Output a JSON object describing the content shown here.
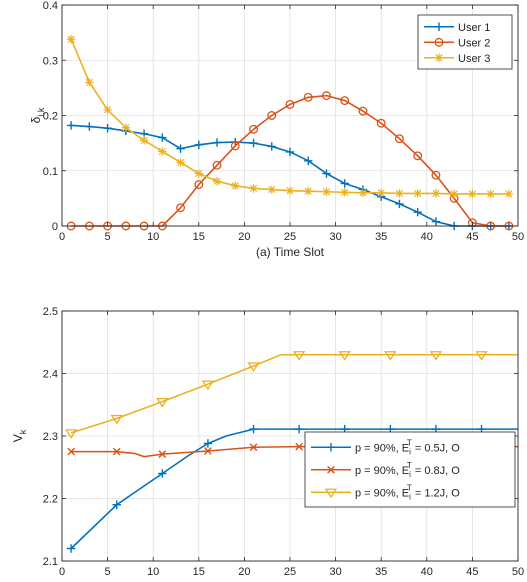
{
  "chart_data": [
    {
      "type": "line",
      "title": "",
      "xlabel": "(a) Time Slot",
      "ylabel_main": "δ",
      "ylabel_sub": "i,k",
      "xlim": [
        0,
        50
      ],
      "ylim": [
        0,
        0.4
      ],
      "xticks": [
        "0",
        "5",
        "10",
        "15",
        "20",
        "25",
        "30",
        "35",
        "40",
        "45",
        "50"
      ],
      "yticks": [
        "0",
        "0.1",
        "0.2",
        "0.3",
        "0.4"
      ],
      "grid": true,
      "legend_position": "top-right",
      "x": [
        1,
        3,
        5,
        7,
        9,
        11,
        13,
        15,
        17,
        19,
        21,
        23,
        25,
        27,
        29,
        31,
        33,
        35,
        37,
        39,
        41,
        43,
        45,
        47,
        49
      ],
      "series": [
        {
          "name": "User 1",
          "color": "#0072BD",
          "marker": "plus",
          "values": [
            0.182,
            0.18,
            0.177,
            0.172,
            0.167,
            0.16,
            0.14,
            0.147,
            0.151,
            0.152,
            0.15,
            0.144,
            0.134,
            0.118,
            0.095,
            0.077,
            0.066,
            0.053,
            0.04,
            0.025,
            0.008,
            0,
            0,
            0,
            0
          ]
        },
        {
          "name": "User 2",
          "color": "#D95319",
          "marker": "circle",
          "values": [
            0,
            0,
            0,
            0,
            0,
            0,
            0.033,
            0.075,
            0.11,
            0.145,
            0.175,
            0.2,
            0.22,
            0.233,
            0.236,
            0.227,
            0.208,
            0.186,
            0.158,
            0.127,
            0.092,
            0.05,
            0.006,
            0,
            0
          ]
        },
        {
          "name": "User 3",
          "color": "#EDB120",
          "marker": "star",
          "values": [
            0.338,
            0.26,
            0.21,
            0.178,
            0.155,
            0.135,
            0.115,
            0.095,
            0.081,
            0.073,
            0.068,
            0.066,
            0.064,
            0.063,
            0.062,
            0.061,
            0.06,
            0.06,
            0.059,
            0.059,
            0.059,
            0.058,
            0.058,
            0.058,
            0.058
          ]
        }
      ]
    },
    {
      "type": "line",
      "title": "",
      "xlabel": "(b) Time Slot",
      "ylabel_main": "V",
      "ylabel_sub": "k",
      "xlim": [
        0,
        50
      ],
      "ylim": [
        2.1,
        2.5
      ],
      "xticks": [
        "0",
        "5",
        "10",
        "15",
        "20",
        "25",
        "30",
        "35",
        "40",
        "45",
        "50"
      ],
      "yticks": [
        "2.1",
        "2.2",
        "2.3",
        "2.4",
        "2.5"
      ],
      "grid": true,
      "legend_position": "bottom-right",
      "series": [
        {
          "name": "p = 90%, E_i^T = 0.5J, O",
          "legend_parts": [
            "p = 90%, E",
            "i",
            "T",
            " = 0.5J, O"
          ],
          "color": "#0072BD",
          "marker": "plus",
          "x": [
            1,
            6,
            11,
            14,
            16,
            18,
            21,
            26,
            31,
            36,
            41,
            46,
            50
          ],
          "values": [
            2.12,
            2.19,
            2.24,
            2.27,
            2.288,
            2.3,
            2.311,
            2.311,
            2.311,
            2.311,
            2.311,
            2.311,
            2.311
          ],
          "marker_x": [
            1,
            6,
            11,
            16,
            21,
            26,
            31,
            36,
            41,
            46
          ]
        },
        {
          "name": "p = 90%, E_i^T = 0.8J, O",
          "legend_parts": [
            "p = 90%, E",
            "i",
            "T",
            " = 0.8J, O"
          ],
          "color": "#D95319",
          "marker": "cross",
          "x": [
            1,
            6,
            8,
            9,
            11,
            16,
            21,
            26,
            31,
            36,
            41,
            46,
            50
          ],
          "values": [
            2.275,
            2.275,
            2.272,
            2.267,
            2.271,
            2.276,
            2.282,
            2.283,
            2.283,
            2.283,
            2.283,
            2.283,
            2.283
          ],
          "marker_x": [
            1,
            6,
            11,
            16,
            21,
            26,
            31,
            36,
            41,
            46
          ]
        },
        {
          "name": "p = 90%, E_i^T = 1.2J, O",
          "legend_parts": [
            "p = 90%, E",
            "i",
            "T",
            " = 1.2J, O"
          ],
          "color": "#EDB120",
          "marker": "triangle-down",
          "x": [
            1,
            6,
            11,
            16,
            21,
            24,
            26,
            31,
            36,
            41,
            46,
            50
          ],
          "values": [
            2.305,
            2.328,
            2.355,
            2.383,
            2.412,
            2.43,
            2.43,
            2.43,
            2.43,
            2.43,
            2.43,
            2.43
          ],
          "marker_x": [
            1,
            6,
            11,
            16,
            21,
            26,
            31,
            36,
            41,
            46
          ]
        }
      ]
    }
  ]
}
